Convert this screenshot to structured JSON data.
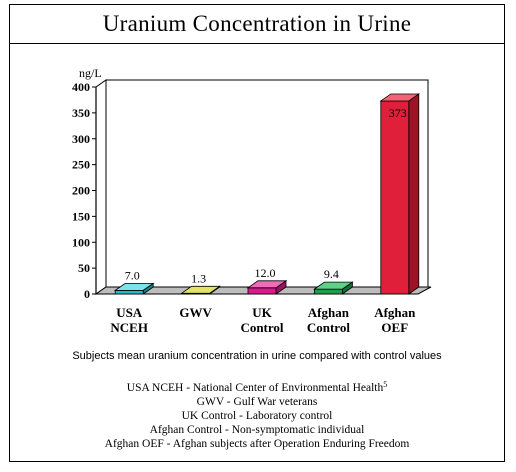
{
  "chart_data": {
    "type": "bar",
    "title": "Uranium Concentration in Urine",
    "ylabel": "ng/L",
    "ylim": [
      0,
      400
    ],
    "yticks": [
      0,
      50,
      100,
      150,
      200,
      250,
      300,
      350,
      400
    ],
    "categories": [
      [
        "USA",
        "NCEH"
      ],
      [
        "GWV"
      ],
      [
        "UK",
        "Control"
      ],
      [
        "Afghan",
        "Control"
      ],
      [
        "Afghan",
        "OEF"
      ]
    ],
    "values": [
      7.0,
      1.3,
      12.0,
      9.4,
      373
    ],
    "value_labels": [
      "7.0",
      "1.3",
      "12.0",
      "9.4",
      "373"
    ],
    "colors": [
      {
        "front": "#1fb8cc",
        "top": "#7fe0ee",
        "side": "#118494"
      },
      {
        "front": "#bdbd1a",
        "top": "#e3e36a",
        "side": "#8a8a10"
      },
      {
        "front": "#d91a8c",
        "top": "#f06bb8",
        "side": "#9c1064"
      },
      {
        "front": "#1aa04a",
        "top": "#5fd087",
        "side": "#0f7033"
      },
      {
        "front": "#e0203a",
        "top": "#f56276",
        "side": "#9e1426"
      }
    ],
    "floor_color": "#bdbdbd",
    "grid": false
  },
  "caption": "Subjects mean uranium concentration in urine compared with control values",
  "legend": [
    {
      "text": "USA NCEH - National Center of Environmental Health",
      "sup": "5"
    },
    {
      "text": "GWV - Gulf War veterans",
      "sup": ""
    },
    {
      "text": "UK Control - Laboratory control",
      "sup": ""
    },
    {
      "text": "Afghan Control - Non-symptomatic individual",
      "sup": ""
    },
    {
      "text": "Afghan OEF - Afghan subjects after Operation Enduring Freedom",
      "sup": ""
    }
  ]
}
